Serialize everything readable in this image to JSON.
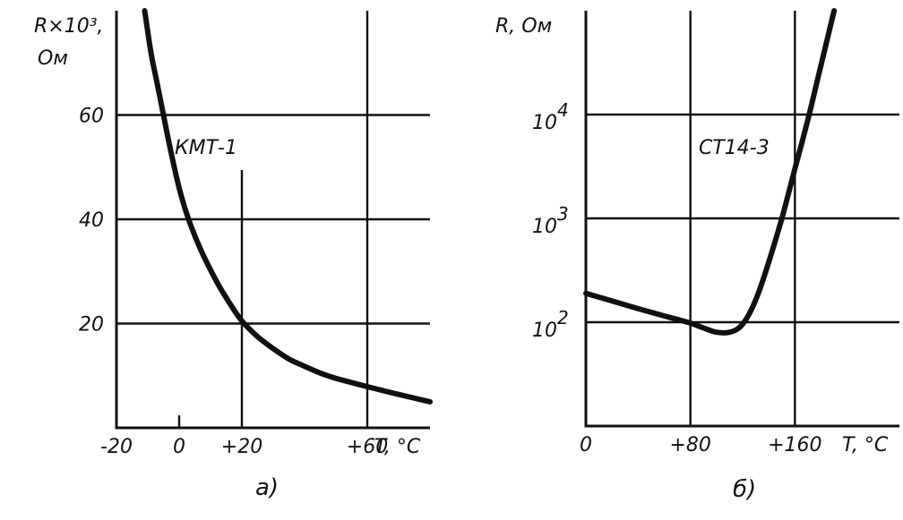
{
  "chart_data": [
    {
      "type": "line",
      "panel_label": "а)",
      "ylabel": "R×10³,",
      "ylabel_unit": "Ом",
      "xlabel": "T, °C",
      "curve_label": "КМТ-1",
      "x_ticks": [
        "-20",
        "0",
        "+20",
        "+60"
      ],
      "y_ticks": [
        "20",
        "40",
        "60"
      ],
      "xlim": [
        -20,
        80
      ],
      "ylim": [
        0,
        80
      ],
      "series": [
        {
          "name": "КМТ-1",
          "x": [
            -11,
            -9,
            -7,
            -5,
            -3,
            0,
            3,
            7,
            12,
            16,
            20,
            25,
            30,
            35,
            40,
            45,
            50,
            60,
            70,
            80
          ],
          "y": [
            80,
            72,
            66,
            60,
            54,
            46,
            40,
            34,
            28,
            24,
            20.5,
            17.5,
            15.2,
            13.2,
            11.8,
            10.5,
            9.5,
            7.9,
            6.4,
            5.0
          ]
        }
      ]
    },
    {
      "type": "line",
      "panel_label": "б)",
      "ylabel": "R, Ом",
      "xlabel": "T, °C",
      "yscale": "log",
      "curve_label": "СТ14-3",
      "x_ticks": [
        "0",
        "+80",
        "+160"
      ],
      "y_ticks": [
        {
          "base": "10",
          "exp": "2"
        },
        {
          "base": "10",
          "exp": "3"
        },
        {
          "base": "10",
          "exp": "4"
        }
      ],
      "xlim": [
        0,
        240
      ],
      "ylim": [
        10,
        100000
      ],
      "series": [
        {
          "name": "СТ14-3",
          "x": [
            0,
            20,
            40,
            60,
            80,
            90,
            100,
            110,
            118,
            125,
            132,
            140,
            150,
            160,
            170,
            180,
            190
          ],
          "y": [
            190,
            160,
            135,
            115,
            98,
            88,
            80,
            80,
            90,
            120,
            190,
            380,
            1000,
            3000,
            9000,
            30000,
            100000
          ]
        }
      ]
    }
  ]
}
